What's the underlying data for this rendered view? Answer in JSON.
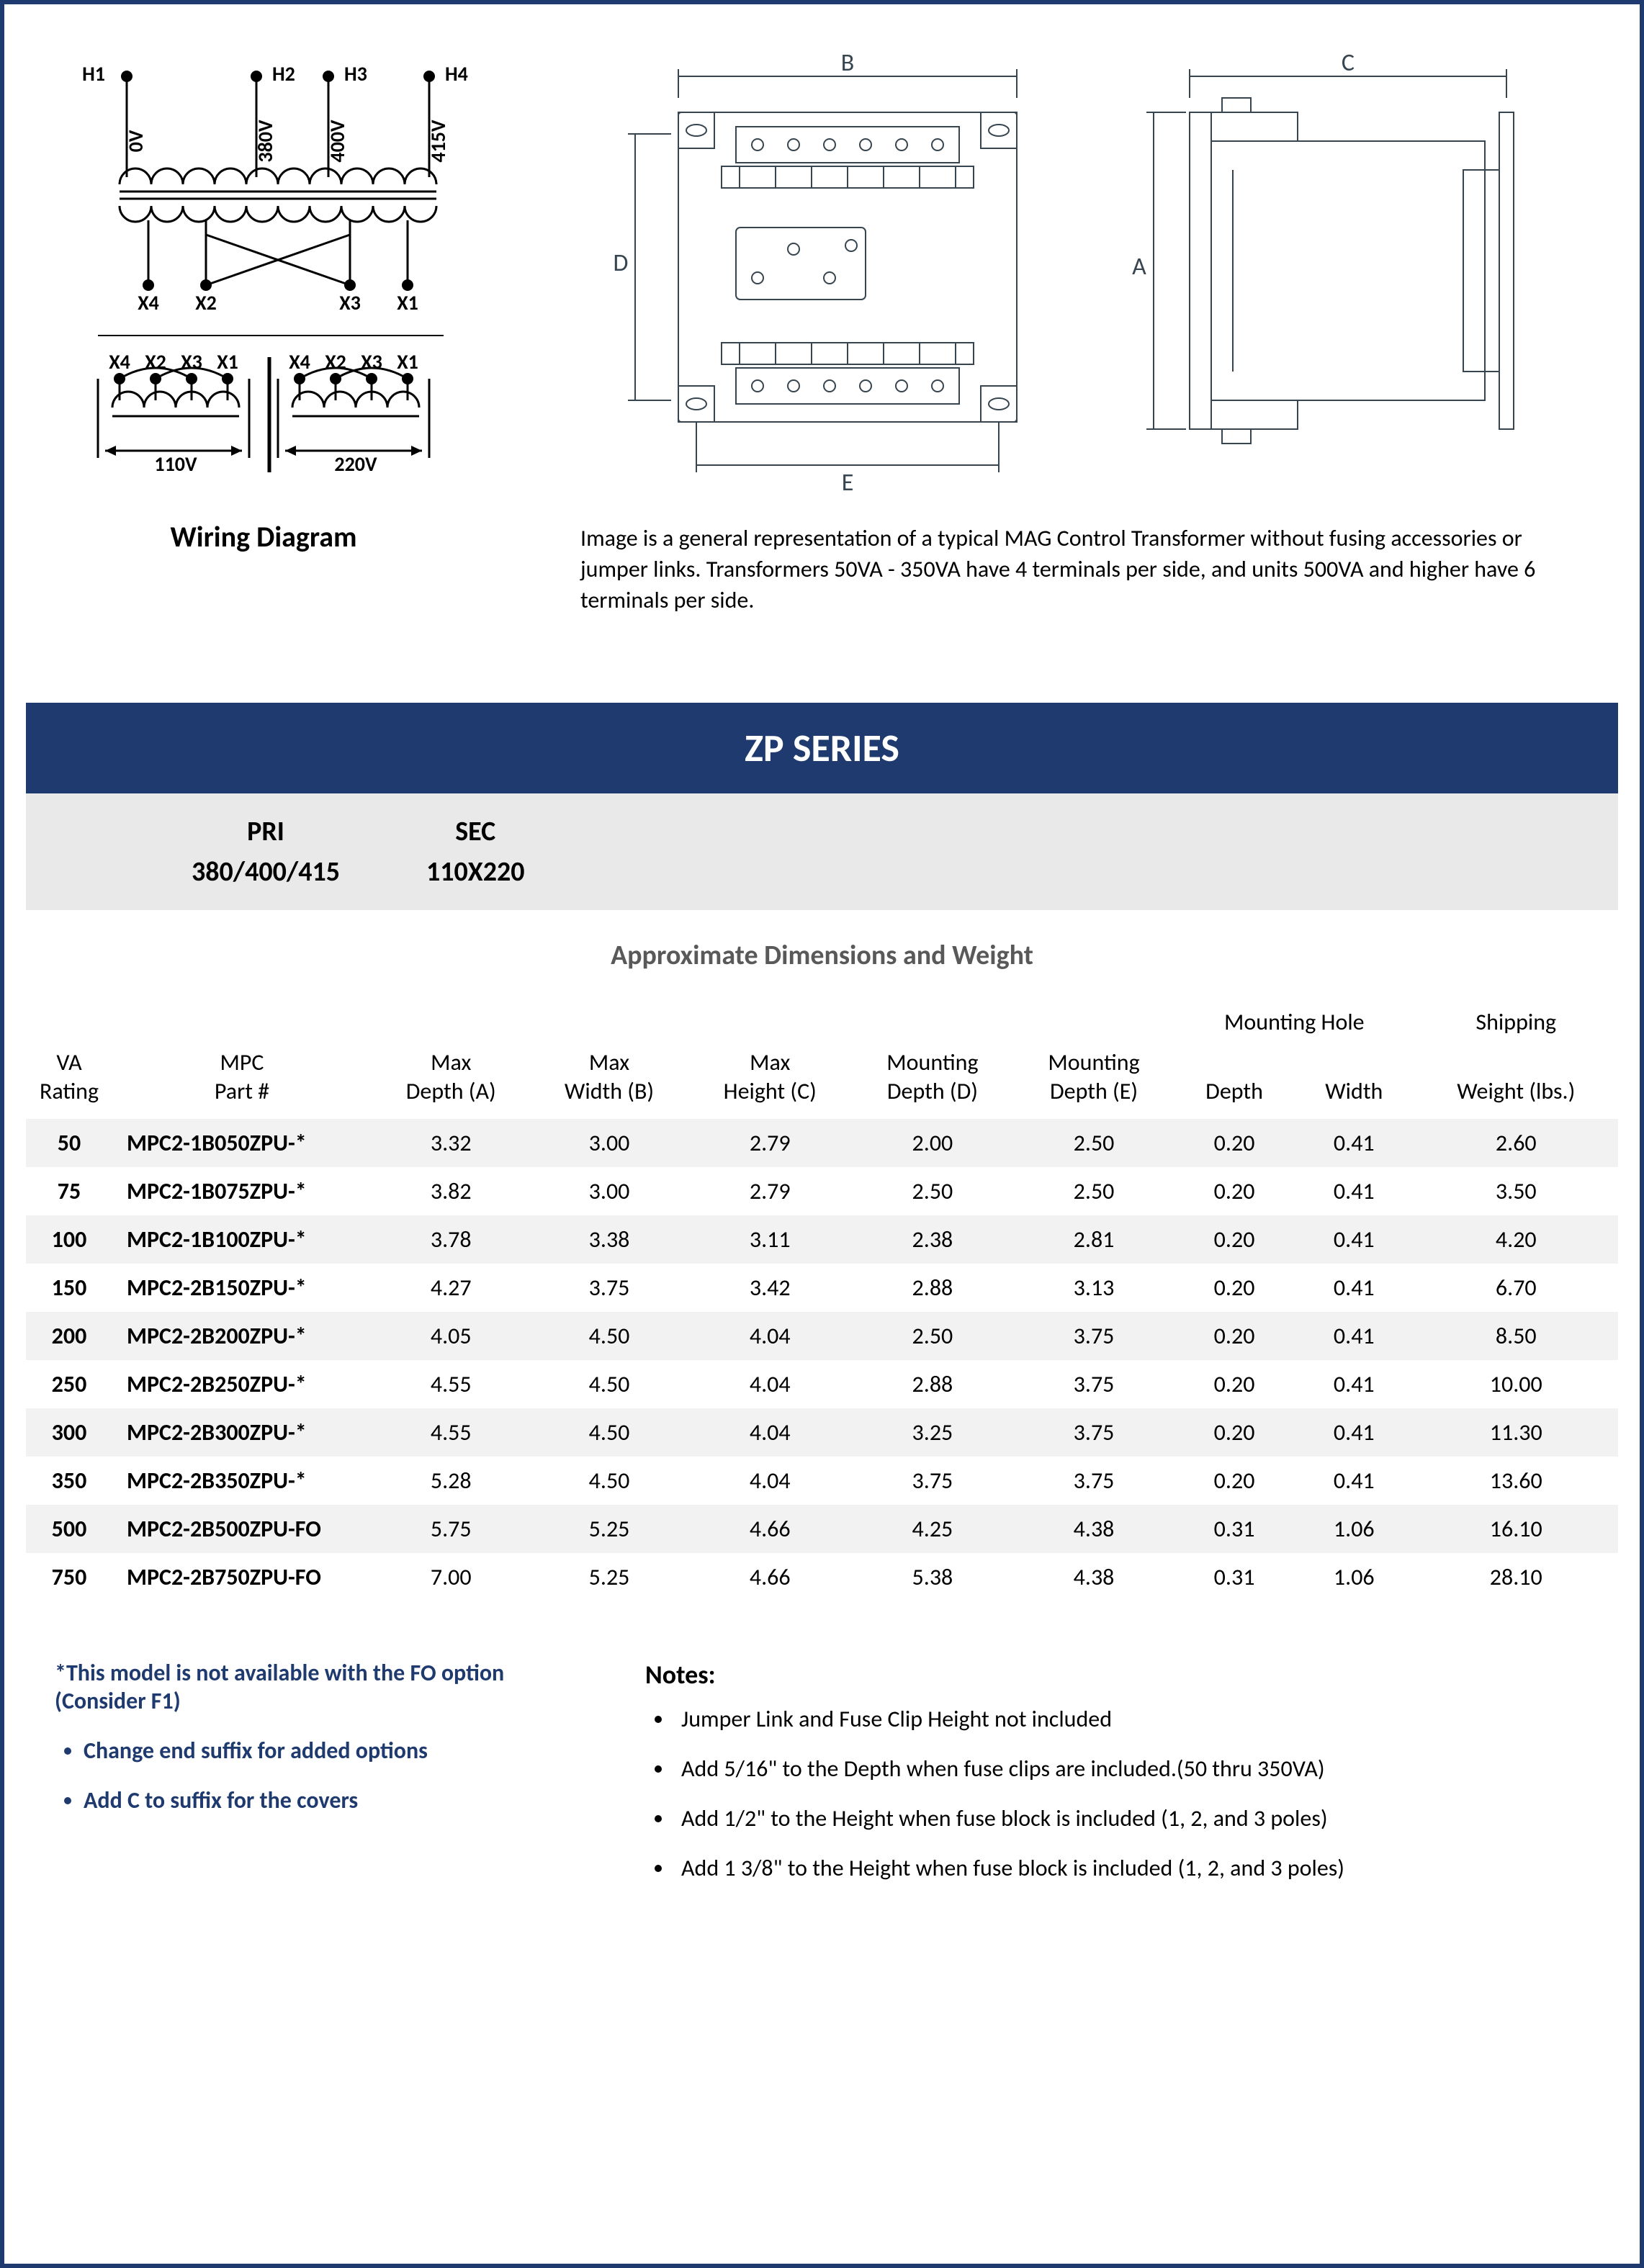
{
  "colors": {
    "pageBorder": "#1f3a6e",
    "banner": "#1f3a6e",
    "bannerText": "#ffffff",
    "grayBand": "#e9e9e9",
    "rowStripe": "#f2f2f2",
    "dimTitle": "#595959",
    "noteBlue": "#1f3a6e",
    "schematicLine": "#000000",
    "techLine": "#36454f"
  },
  "wiring": {
    "caption": "Wiring Diagram",
    "primary": {
      "terminals": [
        "H1",
        "H2",
        "H3",
        "H4"
      ],
      "voltages": [
        "0V",
        "380V",
        "400V",
        "415V"
      ]
    },
    "secondaryTop": [
      "X4",
      "X2",
      "X3",
      "X1"
    ],
    "secondaryBottom": {
      "leftTerms": [
        "X4",
        "X2",
        "X3",
        "X1"
      ],
      "rightTerms": [
        "X4",
        "X2",
        "X3",
        "X1"
      ],
      "leftVoltage": "110V",
      "rightVoltage": "220V"
    }
  },
  "techCaption": "Image is a general representation of a typical MAG Control Transformer without fusing accessories or jumper links.  Transformers 50VA - 350VA  have 4 terminals per side, and units 500VA and higher have 6 terminals per side.",
  "dimLabels": {
    "A": "A",
    "B": "B",
    "C": "C",
    "D": "D",
    "E": "E"
  },
  "seriesTitle": "ZP SERIES",
  "priLabel": "PRI",
  "priValue": "380/400/415",
  "secLabel": "SEC",
  "secValue": "110X220",
  "dimTitle": "Approximate Dimensions and Weight",
  "tableHeaders": {
    "va": [
      "VA",
      "Rating"
    ],
    "part": [
      "MPC",
      "Part #"
    ],
    "depthA": [
      "Max",
      "Depth (A)"
    ],
    "widthB": [
      "Max",
      "Width (B)"
    ],
    "heightC": [
      "Max",
      "Height (C)"
    ],
    "mountD": [
      "Mounting",
      "Depth (D)"
    ],
    "mountE": [
      "Mounting",
      "Depth (E)"
    ],
    "holeGroup": "Mounting Hole",
    "holeDepth": "Depth",
    "holeWidth": "Width",
    "shipGroup": "Shipping",
    "shipWeight": "Weight (lbs.)"
  },
  "rows": [
    {
      "va": "50",
      "part": "MPC2-1B050ZPU-*",
      "a": "3.32",
      "b": "3.00",
      "c": "2.79",
      "d": "2.00",
      "e": "2.50",
      "hd": "0.20",
      "hw": "0.41",
      "wt": "2.60"
    },
    {
      "va": "75",
      "part": "MPC2-1B075ZPU-*",
      "a": "3.82",
      "b": "3.00",
      "c": "2.79",
      "d": "2.50",
      "e": "2.50",
      "hd": "0.20",
      "hw": "0.41",
      "wt": "3.50"
    },
    {
      "va": "100",
      "part": "MPC2-1B100ZPU-*",
      "a": "3.78",
      "b": "3.38",
      "c": "3.11",
      "d": "2.38",
      "e": "2.81",
      "hd": "0.20",
      "hw": "0.41",
      "wt": "4.20"
    },
    {
      "va": "150",
      "part": "MPC2-2B150ZPU-*",
      "a": "4.27",
      "b": "3.75",
      "c": "3.42",
      "d": "2.88",
      "e": "3.13",
      "hd": "0.20",
      "hw": "0.41",
      "wt": "6.70"
    },
    {
      "va": "200",
      "part": "MPC2-2B200ZPU-*",
      "a": "4.05",
      "b": "4.50",
      "c": "4.04",
      "d": "2.50",
      "e": "3.75",
      "hd": "0.20",
      "hw": "0.41",
      "wt": "8.50"
    },
    {
      "va": "250",
      "part": "MPC2-2B250ZPU-*",
      "a": "4.55",
      "b": "4.50",
      "c": "4.04",
      "d": "2.88",
      "e": "3.75",
      "hd": "0.20",
      "hw": "0.41",
      "wt": "10.00"
    },
    {
      "va": "300",
      "part": "MPC2-2B300ZPU-*",
      "a": "4.55",
      "b": "4.50",
      "c": "4.04",
      "d": "3.25",
      "e": "3.75",
      "hd": "0.20",
      "hw": "0.41",
      "wt": "11.30"
    },
    {
      "va": "350",
      "part": "MPC2-2B350ZPU-*",
      "a": "5.28",
      "b": "4.50",
      "c": "4.04",
      "d": "3.75",
      "e": "3.75",
      "hd": "0.20",
      "hw": "0.41",
      "wt": "13.60"
    },
    {
      "va": "500",
      "part": "MPC2-2B500ZPU-FO",
      "a": "5.75",
      "b": "5.25",
      "c": "4.66",
      "d": "4.25",
      "e": "4.38",
      "hd": "0.31",
      "hw": "1.06",
      "wt": "16.10"
    },
    {
      "va": "750",
      "part": "MPC2-2B750ZPU-FO",
      "a": "7.00",
      "b": "5.25",
      "c": "4.66",
      "d": "5.38",
      "e": "4.38",
      "hd": "0.31",
      "hw": "1.06",
      "wt": "28.10"
    }
  ],
  "footerLeft": {
    "star": "*This model is not available with the FO option (Consider F1)",
    "bullets": [
      "Change end suffix for added options",
      "Add C to suffix for the covers"
    ]
  },
  "footerRight": {
    "title": "Notes:",
    "bullets": [
      "Jumper Link and Fuse Clip Height not included",
      "Add 5/16\" to the Depth when fuse clips are included.(50 thru 350VA)",
      "Add 1/2\" to the Height when fuse block is included (1, 2, and 3 poles)",
      "Add 1 3/8\" to the Height when fuse block is included (1, 2, and 3 poles)"
    ]
  }
}
